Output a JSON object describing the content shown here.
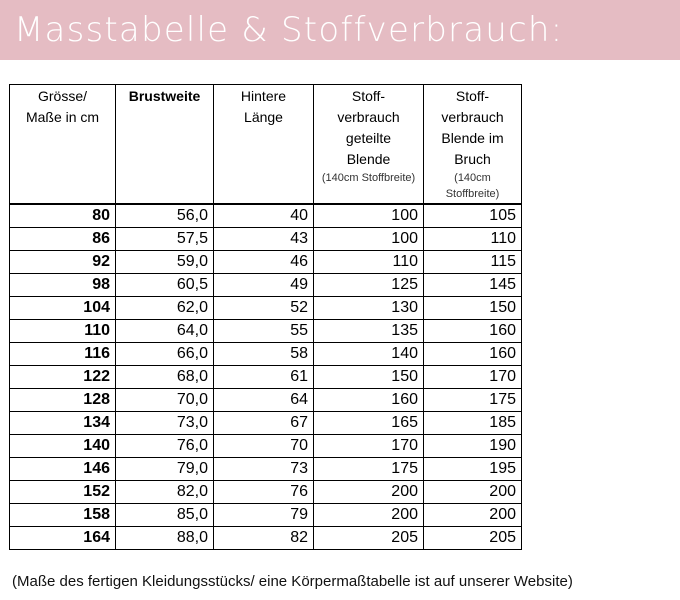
{
  "header": {
    "title": "Masstabelle & Stoffverbrauch:"
  },
  "table": {
    "columns": [
      {
        "lines": [
          "Grösse/",
          "Maße in cm"
        ],
        "note": ""
      },
      {
        "lines": [
          "Brustweite"
        ],
        "note": ""
      },
      {
        "lines": [
          "Hintere",
          "Länge"
        ],
        "note": ""
      },
      {
        "lines": [
          "Stoff-",
          "verbrauch",
          "geteilte",
          "Blende"
        ],
        "note": "(140cm Stoffbreite)"
      },
      {
        "lines": [
          "Stoff-",
          "verbrauch",
          "Blende im",
          "Bruch"
        ],
        "note": "(140cm Stoffbreite)"
      }
    ],
    "rows": [
      [
        "80",
        "56,0",
        "40",
        "100",
        "105"
      ],
      [
        "86",
        "57,5",
        "43",
        "100",
        "110"
      ],
      [
        "92",
        "59,0",
        "46",
        "110",
        "115"
      ],
      [
        "98",
        "60,5",
        "49",
        "125",
        "145"
      ],
      [
        "104",
        "62,0",
        "52",
        "130",
        "150"
      ],
      [
        "110",
        "64,0",
        "55",
        "135",
        "160"
      ],
      [
        "116",
        "66,0",
        "58",
        "140",
        "160"
      ],
      [
        "122",
        "68,0",
        "61",
        "150",
        "170"
      ],
      [
        "128",
        "70,0",
        "64",
        "160",
        "175"
      ],
      [
        "134",
        "73,0",
        "67",
        "165",
        "185"
      ],
      [
        "140",
        "76,0",
        "70",
        "170",
        "190"
      ],
      [
        "146",
        "79,0",
        "73",
        "175",
        "195"
      ],
      [
        "152",
        "82,0",
        "76",
        "200",
        "200"
      ],
      [
        "158",
        "85,0",
        "79",
        "200",
        "200"
      ],
      [
        "164",
        "88,0",
        "82",
        "205",
        "205"
      ]
    ]
  },
  "footnote": "(Maße des fertigen Kleidungsstücks/ eine Körpermaßtabelle ist auf unserer Website)",
  "colors": {
    "banner": "#e5bcc3",
    "banner_text": "#ffffff",
    "border": "#000000"
  }
}
